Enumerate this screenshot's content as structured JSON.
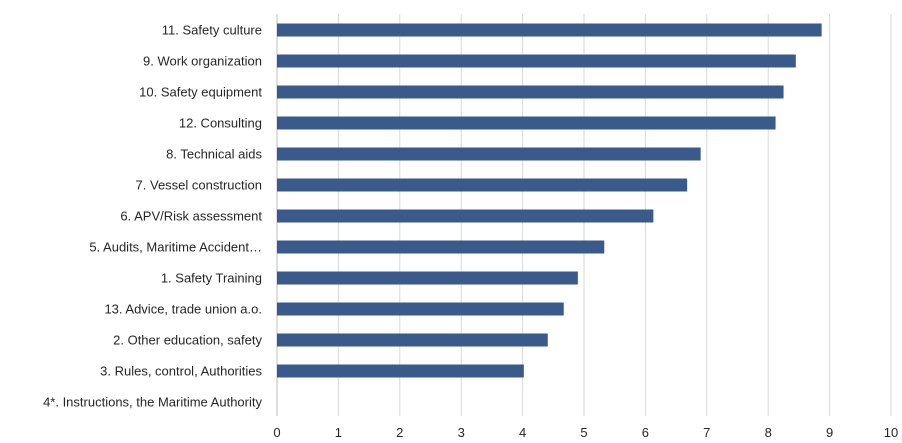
{
  "chart_data": {
    "type": "bar",
    "orientation": "horizontal",
    "categories": [
      "11. Safety culture",
      "9. Work organization",
      "10. Safety equipment",
      "12. Consulting",
      "8. Technical aids",
      "7. Vessel construction",
      "6. APV/Risk assessment",
      "5. Audits, Maritime Accident…",
      "1. Safety Training",
      "13. Advice, trade union a.o.",
      "2. Other education, safety",
      "3. Rules, control, Authorities",
      "4*. Instructions, the Maritime Authority"
    ],
    "values": [
      8.87,
      8.45,
      8.25,
      8.12,
      6.9,
      6.68,
      6.13,
      5.33,
      4.9,
      4.67,
      4.41,
      4.02,
      0
    ],
    "xlim": [
      0,
      10
    ],
    "xticks": [
      0,
      1,
      2,
      3,
      4,
      5,
      6,
      7,
      8,
      9,
      10
    ],
    "grid": "vertical",
    "bar_color": "#3b5a8c",
    "grid_color": "#d9d9d9",
    "title": "",
    "xlabel": "",
    "ylabel": ""
  }
}
